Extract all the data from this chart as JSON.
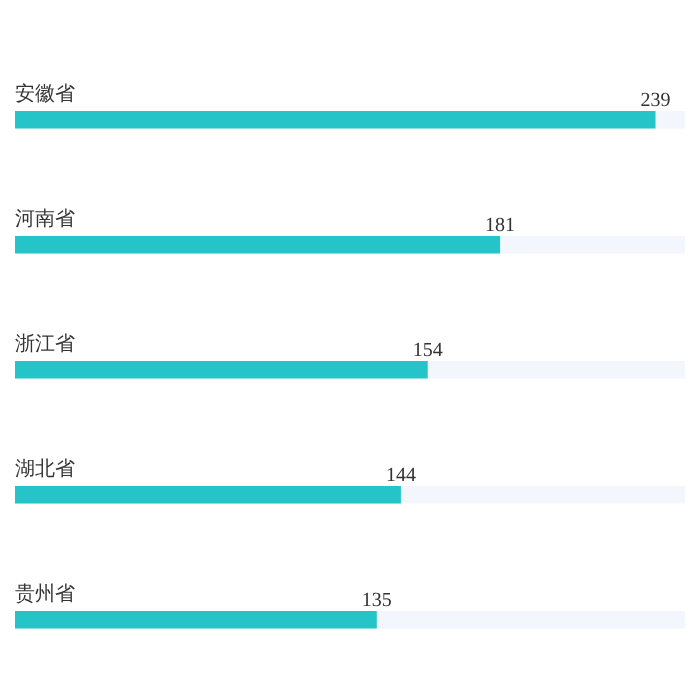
{
  "chart_data": {
    "type": "bar",
    "orientation": "horizontal",
    "categories": [
      "安徽省",
      "河南省",
      "浙江省",
      "湖北省",
      "贵州省"
    ],
    "values": [
      239,
      181,
      154,
      144,
      135
    ],
    "color": "#25c4c9",
    "xlim": [
      0,
      250
    ],
    "data_labels": true,
    "tick_labels": false
  }
}
